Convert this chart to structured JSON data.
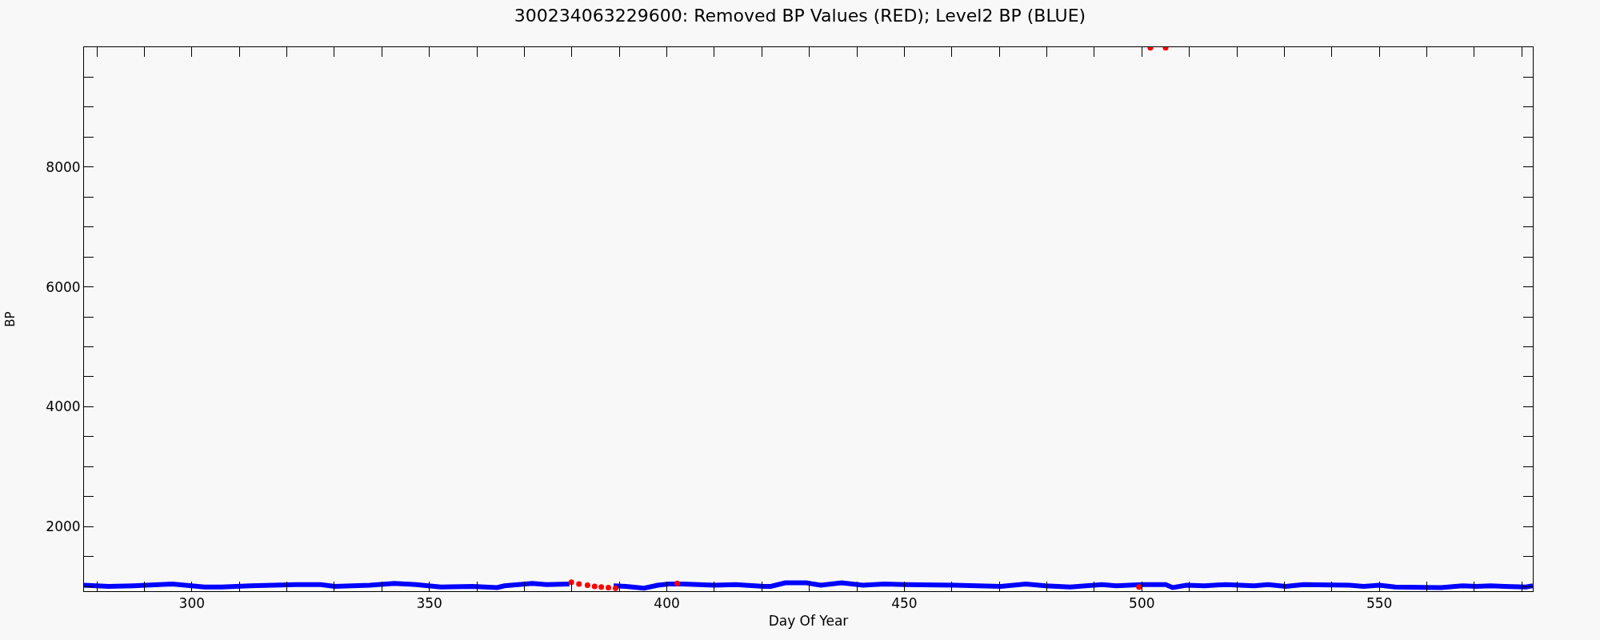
{
  "chart_data": {
    "type": "line",
    "title": "300234063229600: Removed BP Values (RED); Level2 BP (BLUE)",
    "xlabel": "Day Of Year",
    "ylabel": "BP",
    "xlim": [
      277.3,
      582.3
    ],
    "ylim": [
      920,
      10000
    ],
    "xticks": [
      {
        "value": 280,
        "label": null
      },
      {
        "value": 290,
        "label": null
      },
      300,
      {
        "value": 310,
        "label": null
      },
      {
        "value": 320,
        "label": null
      },
      {
        "value": 330,
        "label": null
      },
      {
        "value": 340,
        "label": null
      },
      350,
      {
        "value": 360,
        "label": null
      },
      {
        "value": 370,
        "label": null
      },
      {
        "value": 380,
        "label": null
      },
      {
        "value": 390,
        "label": null
      },
      400,
      {
        "value": 410,
        "label": null
      },
      {
        "value": 420,
        "label": null
      },
      {
        "value": 430,
        "label": null
      },
      {
        "value": 440,
        "label": null
      },
      450,
      {
        "value": 460,
        "label": null
      },
      {
        "value": 470,
        "label": null
      },
      {
        "value": 480,
        "label": null
      },
      {
        "value": 490,
        "label": null
      },
      500,
      {
        "value": 510,
        "label": null
      },
      {
        "value": 520,
        "label": null
      },
      {
        "value": 530,
        "label": null
      },
      {
        "value": 540,
        "label": null
      },
      550,
      {
        "value": 560,
        "label": null
      },
      {
        "value": 570,
        "label": null
      },
      {
        "value": 580,
        "label": null
      }
    ],
    "yticks": [
      {
        "value": 1000,
        "label": null
      },
      {
        "value": 1500,
        "label": null
      },
      2000,
      {
        "value": 2500,
        "label": null
      },
      {
        "value": 3000,
        "label": null
      },
      {
        "value": 3500,
        "label": null
      },
      4000,
      {
        "value": 4500,
        "label": null
      },
      {
        "value": 5000,
        "label": null
      },
      {
        "value": 5500,
        "label": null
      },
      6000,
      {
        "value": 6500,
        "label": null
      },
      {
        "value": 7000,
        "label": null
      },
      {
        "value": 7500,
        "label": null
      },
      8000,
      {
        "value": 8500,
        "label": null
      },
      {
        "value": 9000,
        "label": null
      },
      {
        "value": 9500,
        "label": null
      },
      {
        "value": 10000,
        "label": null
      }
    ],
    "grid": false,
    "series": [
      {
        "color": "#0000ff",
        "marker": "none",
        "line_style": "solid",
        "x": [
          277.3,
          282.5,
          287.7,
          295.9,
          302.6,
          306.3,
          312.3,
          321.9,
          327.1,
          330.1,
          337.5,
          342.7,
          347.2,
          352.4,
          359.1,
          364.3,
          365.8,
          371.7,
          374.7,
          379.5,
          384.0,
          388.8,
          391.4,
          395.2,
          398.1,
          400.4,
          403.3,
          410.0,
          414.5,
          420.5,
          421.9,
          424.9,
          429.4,
          432.4,
          436.8,
          441.3,
          445.8,
          450.2,
          460.6,
          470.3,
          475.5,
          479.7,
          484.9,
          491.6,
          494.6,
          500.0,
          505.0,
          506.5,
          509.4,
          513.2,
          517.6,
          523.6,
          526.6,
          530.3,
          534.0,
          543.7,
          546.7,
          550.0,
          553.3,
          563.0,
          567.5,
          570.5,
          573.4,
          576.4,
          580.9,
          582.3
        ],
        "values": [
          1020,
          1000,
          1010,
          1040,
          990,
          990,
          1010,
          1030,
          1030,
          1000,
          1020,
          1050,
          1030,
          990,
          1000,
          980,
          1010,
          1050,
          1030,
          1040,
          null,
          1010,
          1000,
          970,
          1020,
          1040,
          1040,
          1020,
          1030,
          1000,
          1000,
          1060,
          1060,
          1020,
          1060,
          1020,
          1040,
          1030,
          1020,
          1000,
          1040,
          1010,
          990,
          1030,
          1010,
          1030,
          1030,
          980,
          1020,
          1010,
          1030,
          1010,
          1030,
          1000,
          1030,
          1020,
          1000,
          1020,
          990,
          980,
          1010,
          1000,
          1010,
          1000,
          990,
          1010
        ]
      },
      {
        "type": "scatter",
        "color": "#ff0000",
        "marker": "circle",
        "x": [
          379.9,
          381.5,
          383.3,
          384.8,
          386.2,
          387.7,
          389.2,
          402.2,
          499.4,
          501.8,
          505.0
        ],
        "values": [
          1070,
          1040,
          1020,
          1000,
          990,
          980,
          970,
          1050,
          990,
          9990,
          9990
        ]
      }
    ]
  }
}
